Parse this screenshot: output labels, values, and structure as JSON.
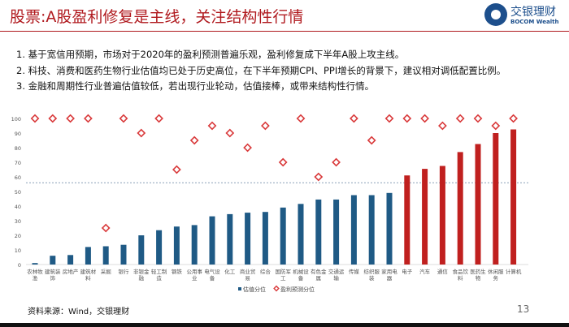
{
  "header": {
    "title": "股票:A股盈利修复是主线，关注结构性行情",
    "logo_cn": "交银理财",
    "logo_en": "BOCOM Wealth"
  },
  "bullets": [
    "1. 基于宽信用预期，市场对于2020年的盈利预测普遍乐观，盈利修复成下半年A股上攻主线。",
    "2. 科技、消费和医药生物行业估值均已处于历史高位，在下半年预期CPI、PPI增长的背景下，建议相对调低配置比例。",
    "3. 金融和周期性行业普遍估值较低，若出现行业轮动，估值接棒，或带来结构性行情。"
  ],
  "chart_data": {
    "type": "bar",
    "categories": [
      "农林牧渔",
      "建筑装饰",
      "房地产",
      "建筑材料",
      "采掘",
      "银行",
      "非银金融",
      "轻工制造",
      "钢铁",
      "公用事业",
      "电气设备",
      "化工",
      "商业贸易",
      "综合",
      "国防军工",
      "机械设备",
      "有色金属",
      "交通运输",
      "传媒",
      "纺织服装",
      "家用电器",
      "电子",
      "汽车",
      "通信",
      "食品饮料",
      "医药生物",
      "休闲服务",
      "计算机"
    ],
    "series": [
      {
        "name": "估值分位",
        "kind": "bar",
        "values": [
          1,
          6,
          6.5,
          12,
          12.5,
          13.5,
          20,
          23.5,
          26,
          27,
          33,
          34.5,
          35.5,
          36,
          39,
          41.5,
          44.5,
          44.5,
          47.5,
          47.5,
          49,
          61,
          65.5,
          67.5,
          77,
          82.5,
          90,
          92.5
        ]
      },
      {
        "name": "盈利预测分位",
        "kind": "marker",
        "values": [
          100,
          100,
          100,
          100,
          25,
          100,
          90,
          100,
          65,
          85,
          95,
          90,
          80,
          95,
          70,
          100,
          60,
          70,
          100,
          85,
          100,
          100,
          100,
          95,
          100,
          100,
          95,
          100
        ]
      }
    ],
    "yticks": [
      0,
      10,
      20,
      30,
      40,
      50,
      60,
      70,
      80,
      90,
      100
    ],
    "ylim": [
      0,
      100
    ],
    "reference_line": 56,
    "highlight_from_index": 21,
    "colors": {
      "bar": "#1f5a85",
      "bar_highlight": "#c0201f",
      "marker": "#d9393a",
      "reference": "#8aa0b8"
    },
    "legend_placement": "bottom-center"
  },
  "footer": {
    "source": "资料来源：Wind，交银理财",
    "page": "13"
  }
}
